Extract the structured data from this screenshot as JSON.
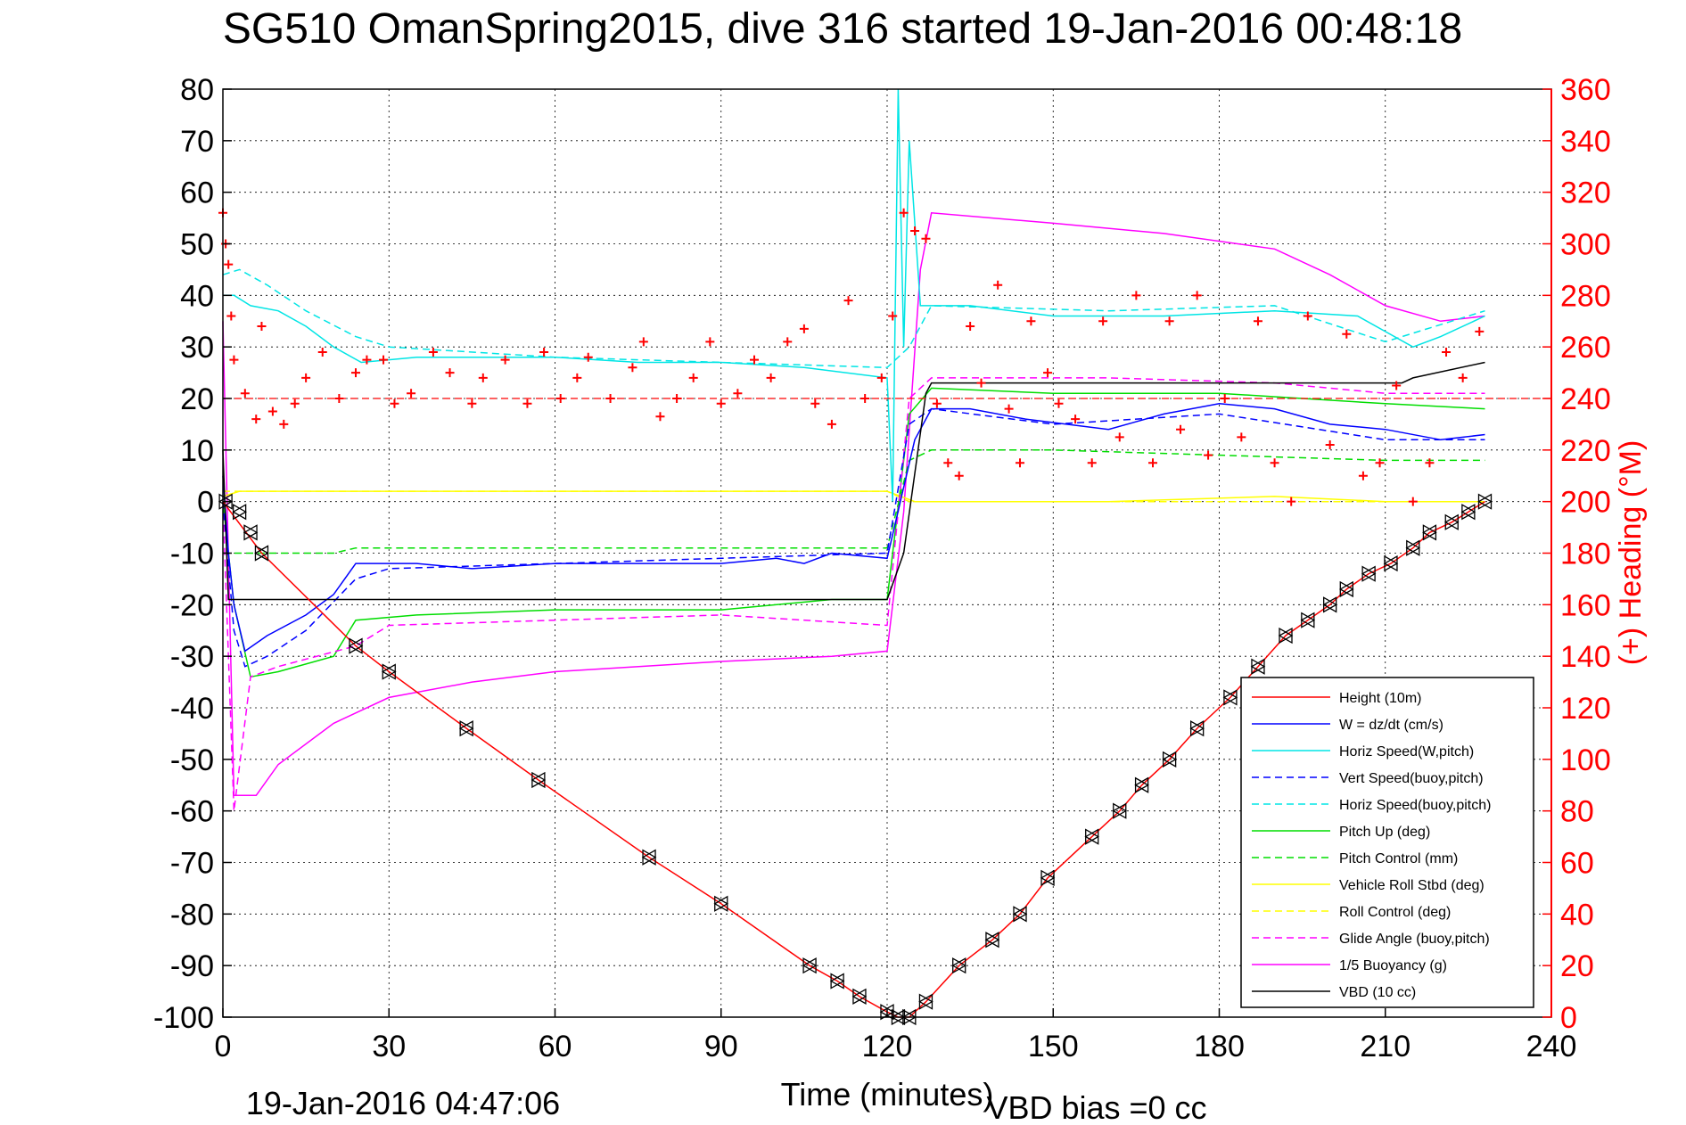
{
  "chart_data": {
    "type": "line",
    "title": "SG510 OmanSpring2015, dive 316 started 19-Jan-2016 00:48:18",
    "xlabel": "Time (minutes)",
    "ylabel_right": "(+) Heading (°M)",
    "footer_left": "19-Jan-2016 04:47:06",
    "footer_right": "VBD bias =0 cc",
    "xlim": [
      0,
      240
    ],
    "ylim_left": [
      -100,
      80
    ],
    "ylim_right": [
      0,
      360
    ],
    "xticks": [
      0,
      30,
      60,
      90,
      120,
      150,
      180,
      210,
      240
    ],
    "yticks_left": [
      80,
      70,
      60,
      50,
      40,
      30,
      20,
      10,
      0,
      -10,
      -20,
      -30,
      -40,
      -50,
      -60,
      -70,
      -80,
      -90,
      -100
    ],
    "yticks_right": [
      360,
      340,
      320,
      300,
      280,
      260,
      240,
      220,
      200,
      180,
      160,
      140,
      120,
      100,
      80,
      60,
      40,
      20,
      0
    ],
    "grid": true,
    "legend_position": "bottom-right",
    "colors": {
      "height": "#ff0000",
      "w": "#0000ff",
      "horiz_speed": "#00e5e5",
      "pitch": "#00dd00",
      "roll": "#ffff00",
      "glide": "#ff00ff",
      "vbd": "#000000",
      "heading": "#ff0000",
      "right_axis": "#ff0000"
    },
    "series": [
      {
        "name": "Height (10m)",
        "key": "height",
        "color": "#ff0000",
        "dash": false,
        "x": [
          0,
          7,
          24,
          30,
          44,
          57,
          77,
          90,
          106,
          111,
          115,
          120,
          122,
          124,
          127,
          133,
          139,
          144,
          149,
          157,
          162,
          166,
          171,
          176,
          182,
          187,
          192,
          196,
          200,
          203,
          207,
          211,
          215,
          218,
          222,
          225,
          228
        ],
        "y": [
          0,
          -10,
          -28,
          -33,
          -44,
          -54,
          -69,
          -78,
          -90,
          -93,
          -96,
          -99,
          -100,
          -100,
          -97,
          -90,
          -85,
          -80,
          -73,
          -65,
          -60,
          -55,
          -50,
          -44,
          -38,
          -32,
          -26,
          -23,
          -20,
          -17,
          -14,
          -12,
          -9,
          -6,
          -4,
          -2,
          0
        ]
      },
      {
        "name": "W = dz/dt (cm/s)",
        "key": "w",
        "color": "#0000ff",
        "dash": false,
        "x": [
          0,
          1,
          2,
          4,
          8,
          15,
          20,
          24,
          35,
          45,
          60,
          75,
          90,
          100,
          105,
          110,
          120,
          125,
          128,
          135,
          145,
          160,
          170,
          180,
          190,
          200,
          210,
          220,
          228
        ],
        "y": [
          5,
          -10,
          -20,
          -29,
          -26,
          -22,
          -18,
          -12,
          -12,
          -13,
          -12,
          -12,
          -12,
          -11,
          -12,
          -10,
          -11,
          12,
          18,
          18,
          16,
          14,
          17,
          19,
          18,
          15,
          14,
          12,
          13
        ]
      },
      {
        "name": "Horiz Speed(W,pitch)",
        "key": "hs",
        "color": "#00e5e5",
        "dash": false,
        "x": [
          0,
          2,
          5,
          10,
          15,
          20,
          25,
          35,
          50,
          60,
          75,
          90,
          105,
          120,
          121,
          122,
          123,
          124,
          126,
          128,
          135,
          150,
          170,
          190,
          205,
          215,
          220,
          228
        ],
        "y": [
          40,
          40,
          38,
          37,
          34,
          30,
          27,
          28,
          28,
          28,
          27,
          27,
          26,
          24,
          0,
          80,
          30,
          70,
          38,
          38,
          38,
          36,
          36,
          37,
          36,
          30,
          32,
          36
        ]
      },
      {
        "name": "Vert Speed(buoy,pitch)",
        "key": "vsb",
        "color": "#0000ff",
        "dash": true,
        "x": [
          0,
          2,
          4,
          8,
          15,
          24,
          30,
          60,
          90,
          120,
          124,
          128,
          150,
          180,
          210,
          228
        ],
        "y": [
          0,
          -25,
          -32,
          -30,
          -25,
          -15,
          -13,
          -12,
          -11,
          -10,
          15,
          18,
          15,
          17,
          12,
          12
        ]
      },
      {
        "name": "Horiz Speed(buoy,pitch)",
        "key": "hsb",
        "color": "#00e5e5",
        "dash": true,
        "x": [
          0,
          3,
          8,
          15,
          24,
          30,
          60,
          90,
          120,
          124,
          128,
          160,
          190,
          210,
          228
        ],
        "y": [
          44,
          45,
          42,
          37,
          32,
          30,
          28,
          27,
          26,
          30,
          38,
          37,
          38,
          31,
          37
        ]
      },
      {
        "name": "Pitch Up (deg)",
        "key": "pitch",
        "color": "#00dd00",
        "dash": false,
        "x": [
          0,
          2,
          5,
          10,
          20,
          24,
          35,
          60,
          90,
          110,
          120,
          124,
          128,
          150,
          180,
          210,
          228
        ],
        "y": [
          0,
          -20,
          -34,
          -33,
          -30,
          -23,
          -22,
          -21,
          -21,
          -19,
          -19,
          17,
          22,
          21,
          21,
          19,
          18
        ]
      },
      {
        "name": "Pitch Control (mm)",
        "key": "pc",
        "color": "#00dd00",
        "dash": true,
        "x": [
          0,
          2,
          5,
          8,
          20,
          24,
          120,
          124,
          128,
          150,
          180,
          210,
          228
        ],
        "y": [
          -10,
          -10,
          -10,
          -10,
          -10,
          -9,
          -9,
          8,
          10,
          10,
          9,
          8,
          8
        ]
      },
      {
        "name": "Vehicle Roll Stbd (deg)",
        "key": "roll",
        "color": "#ffff00",
        "dash": false,
        "x": [
          0,
          3,
          10,
          24,
          60,
          90,
          120,
          125,
          130,
          160,
          190,
          210,
          228
        ],
        "y": [
          1,
          2,
          2,
          2,
          2,
          2,
          2,
          0,
          0,
          0,
          1,
          0,
          0
        ]
      },
      {
        "name": "Roll Control (deg)",
        "key": "rc",
        "color": "#ffff00",
        "dash": true,
        "x": [
          0,
          120,
          124,
          228
        ],
        "y": [
          2,
          2,
          0,
          0
        ]
      },
      {
        "name": "Glide Angle (buoy,pitch)",
        "key": "ga",
        "color": "#ff00ff",
        "dash": true,
        "x": [
          0,
          2,
          5,
          10,
          24,
          30,
          60,
          90,
          120,
          124,
          128,
          160,
          190,
          210,
          228
        ],
        "y": [
          0,
          -60,
          -34,
          -32,
          -28,
          -24,
          -23,
          -22,
          -24,
          20,
          24,
          24,
          23,
          21,
          21
        ]
      },
      {
        "name": "1/5 Buoyancy (g)",
        "key": "buoy",
        "color": "#ff00ff",
        "dash": false,
        "x": [
          0,
          2,
          4,
          6,
          10,
          20,
          30,
          45,
          60,
          90,
          110,
          120,
          123,
          126,
          128,
          150,
          170,
          190,
          200,
          210,
          220,
          228
        ],
        "y": [
          35,
          -57,
          -57,
          -57,
          -51,
          -43,
          -38,
          -35,
          -33,
          -31,
          -30,
          -29,
          -2,
          45,
          56,
          54,
          52,
          49,
          44,
          38,
          35,
          36
        ]
      },
      {
        "name": "VBD (10 cc)",
        "key": "vbd",
        "color": "#000000",
        "dash": false,
        "x": [
          0,
          1,
          3,
          120,
          123,
          127,
          128,
          200,
          213,
          215,
          228
        ],
        "y": [
          10,
          -19,
          -19,
          -19,
          -10,
          21,
          23,
          23,
          23,
          24,
          27
        ]
      }
    ],
    "heading_series": {
      "name": "Heading (+)",
      "color": "#ff0000",
      "axis": "right",
      "x": [
        0,
        0.5,
        1,
        1.5,
        2,
        4,
        6,
        7,
        9,
        11,
        13,
        15,
        18,
        21,
        24,
        26,
        29,
        31,
        34,
        38,
        41,
        45,
        47,
        51,
        55,
        58,
        61,
        64,
        66,
        70,
        74,
        76,
        79,
        82,
        85,
        88,
        90,
        93,
        96,
        99,
        102,
        105,
        107,
        110,
        113,
        116,
        119,
        121,
        123,
        125,
        127,
        129,
        131,
        133,
        135,
        137,
        140,
        142,
        144,
        146,
        149,
        151,
        154,
        157,
        159,
        162,
        165,
        168,
        171,
        173,
        176,
        178,
        181,
        184,
        187,
        190,
        193,
        196,
        200,
        203,
        206,
        209,
        212,
        215,
        218,
        221,
        224,
        227
      ],
      "y": [
        312,
        300,
        292,
        272,
        255,
        242,
        232,
        268,
        235,
        230,
        238,
        248,
        258,
        240,
        250,
        255,
        255,
        238,
        242,
        258,
        250,
        238,
        248,
        255,
        238,
        258,
        240,
        248,
        256,
        240,
        252,
        262,
        233,
        240,
        248,
        262,
        238,
        242,
        255,
        248,
        262,
        267,
        238,
        230,
        278,
        240,
        248,
        272,
        312,
        305,
        302,
        238,
        215,
        210,
        268,
        246,
        284,
        236,
        215,
        270,
        250,
        238,
        232,
        215,
        270,
        225,
        280,
        215,
        270,
        228,
        280,
        218,
        240,
        225,
        270,
        215,
        200,
        272,
        222,
        265,
        210,
        215,
        245,
        200,
        215,
        258,
        248,
        266
      ]
    },
    "vbd_markers": {
      "label": "VBD (10 cc)",
      "x": [
        0.5,
        3,
        5,
        7,
        24,
        30,
        44,
        57,
        77,
        90,
        106,
        111,
        115,
        120,
        122,
        124,
        127,
        133,
        139,
        144,
        149,
        157,
        162,
        166,
        171,
        176,
        182,
        187,
        192,
        196,
        200,
        203,
        207,
        211,
        215,
        218,
        222,
        225,
        228
      ],
      "y": [
        0,
        -2,
        -6,
        -10,
        -28,
        -33,
        -44,
        -54,
        -69,
        -78,
        -90,
        -93,
        -96,
        -99,
        -100,
        -100,
        -97,
        -90,
        -85,
        -80,
        -73,
        -65,
        -60,
        -55,
        -50,
        -44,
        -38,
        -32,
        -26,
        -23,
        -20,
        -17,
        -14,
        -12,
        -9,
        -6,
        -4,
        -2,
        0
      ]
    }
  }
}
